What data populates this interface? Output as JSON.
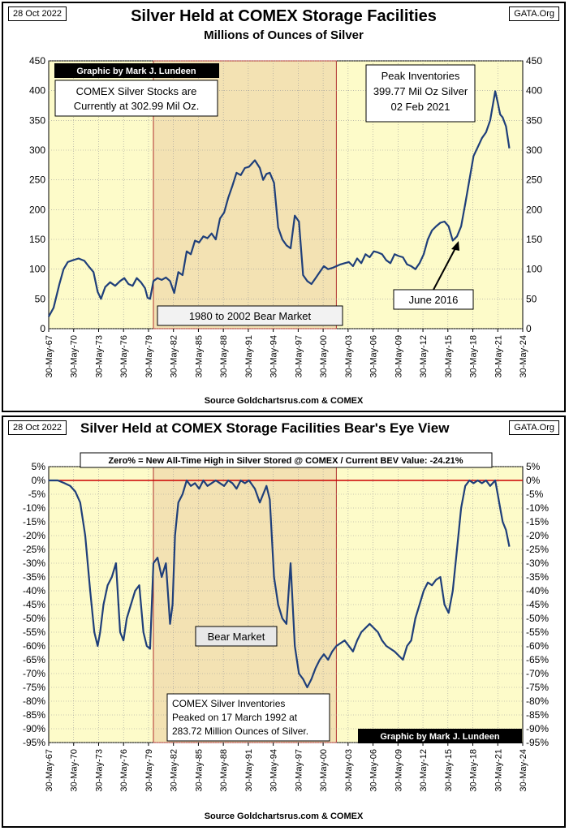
{
  "top_chart": {
    "date_tag": "28 Oct 2022",
    "site_tag": "GATA.Org",
    "title": "Silver Held at COMEX Storage Facilities",
    "subtitle": "Millions of Ounces of Silver",
    "credit": "Graphic by Mark J. Lundeen",
    "current_note_line1": "COMEX Silver Stocks are",
    "current_note_line2": "Currently at 302.99 Mil Oz.",
    "peak_note_line1": "Peak Inventories",
    "peak_note_line2": "399.77 Mil Oz Silver",
    "peak_note_line3": "02 Feb 2021",
    "bear_label": "1980 to 2002 Bear Market",
    "june_label": "June 2016",
    "source": "Source Goldchartsrus.com & COMEX"
  },
  "bottom_chart": {
    "date_tag": "28 Oct 2022",
    "site_tag": "GATA.Org",
    "title": "Silver Held at COMEX Storage Facilities   Bear's Eye View",
    "zero_note": "Zero% = New All-Time High in Silver Stored @ COMEX  / Current BEV Value: -24.21%",
    "bear_label": "Bear Market",
    "peak_note_line1": "COMEX Silver Inventories",
    "peak_note_line2": "Peaked on 17 March 1992 at",
    "peak_note_line3": "283.72 Million Ounces of Silver.",
    "credit": "Graphic by Mark J. Lundeen",
    "source": "Source Goldchartsrus.com & COMEX"
  },
  "colors": {
    "plot_bg": "#fdfbc9",
    "bear_shade": "#f3e2b3",
    "line": "#1f3f7a",
    "bear_border": "#b03030",
    "zero_line": "#cc0000",
    "credit_bg": "#000000"
  },
  "chart_data": [
    {
      "type": "line",
      "title": "Silver Held at COMEX Storage Facilities",
      "subtitle": "Millions of Ounces of Silver",
      "x_ticks": [
        "30-May-67",
        "30-May-70",
        "30-May-73",
        "30-May-76",
        "30-May-79",
        "30-May-82",
        "30-May-85",
        "30-May-88",
        "30-May-91",
        "30-May-94",
        "30-May-97",
        "30-May-00",
        "30-May-03",
        "30-May-06",
        "30-May-09",
        "30-May-12",
        "30-May-15",
        "30-May-18",
        "30-May-21",
        "30-May-24"
      ],
      "y_ticks": [
        0,
        50,
        100,
        150,
        200,
        250,
        300,
        350,
        400,
        450
      ],
      "ylim": [
        0,
        450
      ],
      "xlim": [
        1967.41,
        2024.41
      ],
      "grid": true,
      "shaded_region": [
        1980.0,
        2002.0
      ],
      "series": [
        {
          "x": [
            1967.4,
            1968.0,
            1968.7,
            1969.2,
            1969.7,
            1970.3,
            1971.0,
            1971.7,
            1972.2,
            1972.8,
            1973.3,
            1973.7,
            1974.2,
            1974.8,
            1975.4,
            1976.0,
            1976.5,
            1977.0,
            1977.5,
            1978.0,
            1978.5,
            1979.0,
            1979.3,
            1979.6,
            1980.0,
            1980.5,
            1981.0,
            1981.5,
            1982.0,
            1982.5,
            1983.0,
            1983.5,
            1984.0,
            1984.5,
            1985.0,
            1985.5,
            1986.0,
            1986.5,
            1987.0,
            1987.5,
            1988.0,
            1988.5,
            1989.0,
            1989.5,
            1990.0,
            1990.5,
            1991.0,
            1991.5,
            1992.2,
            1992.8,
            1993.2,
            1993.6,
            1994.0,
            1994.5,
            1995.0,
            1995.5,
            1996.0,
            1996.5,
            1997.0,
            1997.5,
            1998.0,
            1998.5,
            1999.0,
            1999.5,
            2000.0,
            2000.5,
            2001.0,
            2001.5,
            2002.0,
            2002.5,
            2003.0,
            2003.5,
            2004.0,
            2004.5,
            2005.0,
            2005.5,
            2006.0,
            2006.5,
            2007.0,
            2007.5,
            2008.0,
            2008.5,
            2009.0,
            2009.5,
            2010.0,
            2010.5,
            2011.0,
            2011.5,
            2012.0,
            2012.5,
            2013.0,
            2013.5,
            2014.0,
            2014.5,
            2015.0,
            2015.5,
            2016.0,
            2016.5,
            2017.0,
            2017.5,
            2018.0,
            2018.5,
            2019.0,
            2019.5,
            2020.0,
            2020.5,
            2021.1,
            2021.4,
            2021.7,
            2022.0,
            2022.4,
            2022.8
          ],
          "y": [
            20,
            35,
            75,
            100,
            112,
            115,
            118,
            114,
            105,
            95,
            62,
            50,
            70,
            78,
            72,
            80,
            85,
            75,
            72,
            85,
            78,
            68,
            52,
            50,
            80,
            85,
            82,
            86,
            80,
            60,
            95,
            90,
            130,
            125,
            148,
            145,
            155,
            152,
            160,
            150,
            185,
            195,
            220,
            240,
            262,
            258,
            270,
            272,
            283,
            270,
            250,
            260,
            262,
            245,
            170,
            150,
            140,
            135,
            190,
            180,
            90,
            80,
            75,
            85,
            95,
            105,
            100,
            102,
            105,
            108,
            110,
            112,
            105,
            118,
            110,
            125,
            120,
            130,
            128,
            125,
            115,
            110,
            125,
            122,
            120,
            108,
            105,
            100,
            110,
            125,
            150,
            165,
            172,
            178,
            180,
            172,
            148,
            155,
            172,
            210,
            250,
            290,
            305,
            320,
            330,
            350,
            399,
            380,
            360,
            355,
            340,
            303
          ]
        }
      ]
    },
    {
      "type": "line",
      "title": "Silver Held at COMEX Storage Facilities   Bear's Eye View",
      "x_ticks": [
        "30-May-67",
        "30-May-70",
        "30-May-73",
        "30-May-76",
        "30-May-79",
        "30-May-82",
        "30-May-85",
        "30-May-88",
        "30-May-91",
        "30-May-94",
        "30-May-97",
        "30-May-00",
        "30-May-03",
        "30-May-06",
        "30-May-09",
        "30-May-12",
        "30-May-15",
        "30-May-18",
        "30-May-21",
        "30-May-24"
      ],
      "y_ticks": [
        5,
        0,
        -5,
        -10,
        -15,
        -20,
        -25,
        -30,
        -35,
        -40,
        -45,
        -50,
        -55,
        -60,
        -65,
        -70,
        -75,
        -80,
        -85,
        -90,
        -95
      ],
      "y_tick_labels": [
        "5%",
        "0%",
        "-5%",
        "-10%",
        "-15%",
        "-20%",
        "-25%",
        "-30%",
        "-35%",
        "-40%",
        "-45%",
        "-50%",
        "-55%",
        "-60%",
        "-65%",
        "-70%",
        "-75%",
        "-80%",
        "-85%",
        "-90%",
        "-95%"
      ],
      "ylim": [
        -95,
        5
      ],
      "xlim": [
        1967.41,
        2024.41
      ],
      "grid": true,
      "shaded_region": [
        1980.0,
        2002.0
      ],
      "series": [
        {
          "x": [
            1967.4,
            1968.5,
            1969.3,
            1970.0,
            1970.6,
            1971.2,
            1971.8,
            1972.4,
            1972.9,
            1973.3,
            1973.6,
            1974.0,
            1974.5,
            1975.0,
            1975.5,
            1976.0,
            1976.4,
            1976.8,
            1977.3,
            1977.8,
            1978.3,
            1978.8,
            1979.2,
            1979.6,
            1980.0,
            1980.5,
            1981.0,
            1981.5,
            1982.0,
            1982.3,
            1982.6,
            1983.0,
            1983.5,
            1984.0,
            1984.5,
            1985.0,
            1985.5,
            1986.0,
            1986.5,
            1987.0,
            1987.5,
            1988.0,
            1988.5,
            1989.0,
            1989.5,
            1990.0,
            1990.5,
            1991.0,
            1991.5,
            1992.2,
            1992.8,
            1993.2,
            1993.6,
            1994.0,
            1994.5,
            1995.0,
            1995.5,
            1996.0,
            1996.5,
            1997.0,
            1997.5,
            1998.0,
            1998.5,
            1999.0,
            1999.5,
            2000.0,
            2000.5,
            2001.0,
            2001.5,
            2002.0,
            2003.0,
            2004.0,
            2004.5,
            2005.0,
            2006.0,
            2007.0,
            2007.5,
            2008.0,
            2009.0,
            2010.0,
            2010.5,
            2011.0,
            2011.5,
            2012.0,
            2012.5,
            2013.0,
            2013.5,
            2014.0,
            2014.5,
            2015.0,
            2015.5,
            2016.0,
            2016.5,
            2017.0,
            2017.5,
            2018.0,
            2018.5,
            2019.0,
            2019.5,
            2020.0,
            2020.5,
            2021.1,
            2021.4,
            2021.7,
            2022.0,
            2022.4,
            2022.8
          ],
          "y": [
            0,
            0,
            -1,
            -2,
            -4,
            -8,
            -20,
            -40,
            -55,
            -60,
            -55,
            -45,
            -38,
            -35,
            -30,
            -55,
            -58,
            -50,
            -45,
            -40,
            -38,
            -55,
            -60,
            -61,
            -30,
            -28,
            -35,
            -30,
            -52,
            -45,
            -20,
            -8,
            -5,
            0,
            -2,
            -1,
            -3,
            0,
            -2,
            -1,
            0,
            -1,
            -2,
            0,
            -1,
            -3,
            0,
            -1,
            0,
            -3,
            -8,
            -5,
            -2,
            -7,
            -35,
            -45,
            -50,
            -52,
            -30,
            -60,
            -70,
            -72,
            -75,
            -72,
            -68,
            -65,
            -63,
            -65,
            -62,
            -60,
            -58,
            -62,
            -58,
            -55,
            -52,
            -55,
            -58,
            -60,
            -62,
            -65,
            -60,
            -58,
            -50,
            -45,
            -40,
            -37,
            -38,
            -36,
            -35,
            -45,
            -48,
            -40,
            -25,
            -10,
            -2,
            0,
            -1,
            0,
            -1,
            0,
            -2,
            0,
            -5,
            -10,
            -15,
            -18,
            -24
          ]
        }
      ]
    }
  ]
}
